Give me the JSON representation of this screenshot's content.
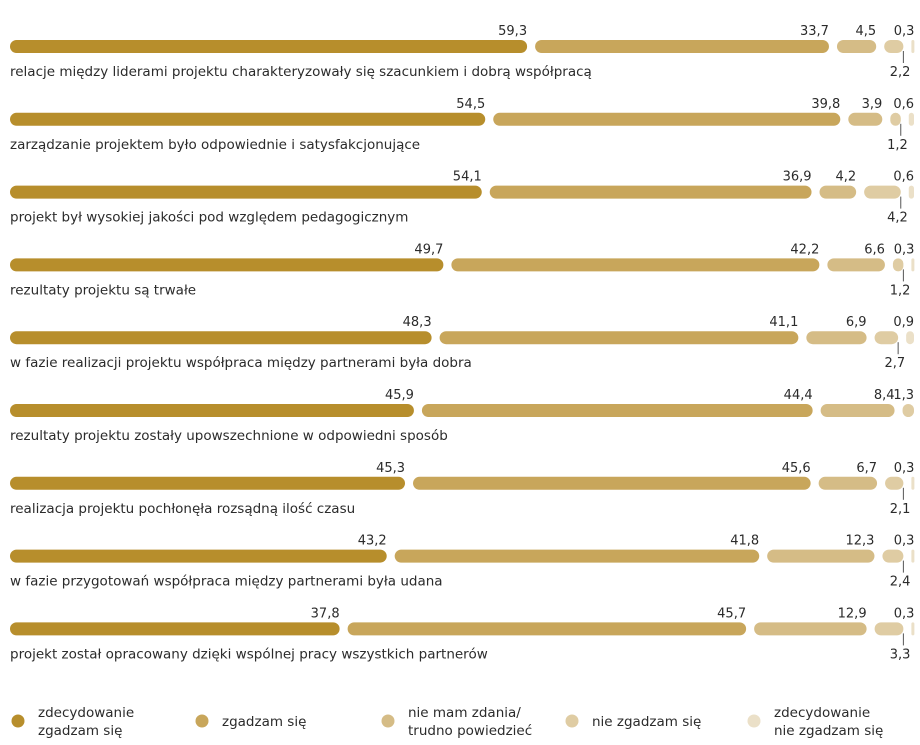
{
  "chart_data": {
    "type": "bar",
    "stacked": true,
    "orientation": "horizontal",
    "unit": "%",
    "colors": [
      "#b78e2c",
      "#c8a65b",
      "#d5bc86",
      "#dfcca3",
      "#ebe0c8"
    ],
    "series": [
      {
        "name": "zdecydowanie zgadzam się"
      },
      {
        "name": "zgadzam się"
      },
      {
        "name": "nie mam zdania/ trudno powiedzieć"
      },
      {
        "name": "nie zgadzam się"
      },
      {
        "name": "zdecydowanie nie zgadzam się"
      }
    ],
    "legend_lines": [
      [
        "zdecydowanie",
        "zgadzam się"
      ],
      [
        "zgadzam się"
      ],
      [
        "nie mam zdania/",
        "trudno powiedzieć"
      ],
      [
        "nie zgadzam się"
      ],
      [
        "zdecydowanie",
        "nie zgadzam się"
      ]
    ],
    "legend_position": "bottom",
    "categories": [
      "relacje między liderami projektu charakteryzowały się szacunkiem i dobrą współpracą",
      "zarządzanie projektem było odpowiednie i satysfakcjonujące",
      "projekt był wysokiej jakości pod względem pedagogicznym",
      "rezultaty projektu są trwałe",
      "w fazie realizacji projektu współpraca między partnerami była dobra",
      "rezultaty projektu zostały upowszechnione w odpowiedni sposób",
      "realizacja projektu pochłonęła rozsądną ilość czasu",
      "w fazie przygotowań współpraca między partnerami była udana",
      "projekt został opracowany dzięki wspólnej pracy wszystkich partnerów"
    ],
    "values": [
      [
        59.3,
        33.7,
        4.5,
        2.2,
        0.3
      ],
      [
        54.5,
        39.8,
        3.9,
        1.2,
        0.6
      ],
      [
        54.1,
        36.9,
        4.2,
        4.2,
        0.6
      ],
      [
        49.7,
        42.2,
        6.6,
        1.2,
        0.3
      ],
      [
        48.3,
        41.1,
        6.9,
        2.7,
        0.9
      ],
      [
        45.9,
        44.4,
        8.4,
        1.3,
        null
      ],
      [
        45.3,
        45.6,
        6.7,
        2.1,
        0.3
      ],
      [
        43.2,
        41.8,
        12.3,
        2.4,
        0.3
      ],
      [
        37.8,
        45.7,
        12.9,
        3.3,
        0.3
      ]
    ],
    "labels": [
      [
        "59,3",
        "33,7",
        "4,5",
        "2,2",
        "0,3"
      ],
      [
        "54,5",
        "39,8",
        "3,9",
        "1,2",
        "0,6"
      ],
      [
        "54,1",
        "36,9",
        "4,2",
        "4,2",
        "0,6"
      ],
      [
        "49,7",
        "42,2",
        "6,6",
        "1,2",
        "0,3"
      ],
      [
        "48,3",
        "41,1",
        "6,9",
        "2,7",
        "0,9"
      ],
      [
        "45,9",
        "44,4",
        "8,4",
        "1,3",
        ""
      ],
      [
        "45,3",
        "45,6",
        "6,7",
        "2,1",
        "0,3"
      ],
      [
        "43,2",
        "41,8",
        "12,3",
        "2,4",
        "0,3"
      ],
      [
        "37,8",
        "45,7",
        "12,9",
        "3,3",
        "0,3"
      ]
    ],
    "label_below": [
      [
        false,
        false,
        false,
        true,
        false
      ],
      [
        false,
        false,
        false,
        true,
        false
      ],
      [
        false,
        false,
        false,
        true,
        false
      ],
      [
        false,
        false,
        false,
        true,
        false
      ],
      [
        false,
        false,
        false,
        true,
        false
      ],
      [
        false,
        false,
        false,
        false,
        false
      ],
      [
        false,
        false,
        false,
        true,
        false
      ],
      [
        false,
        false,
        false,
        true,
        false
      ],
      [
        false,
        false,
        false,
        true,
        false
      ]
    ]
  }
}
